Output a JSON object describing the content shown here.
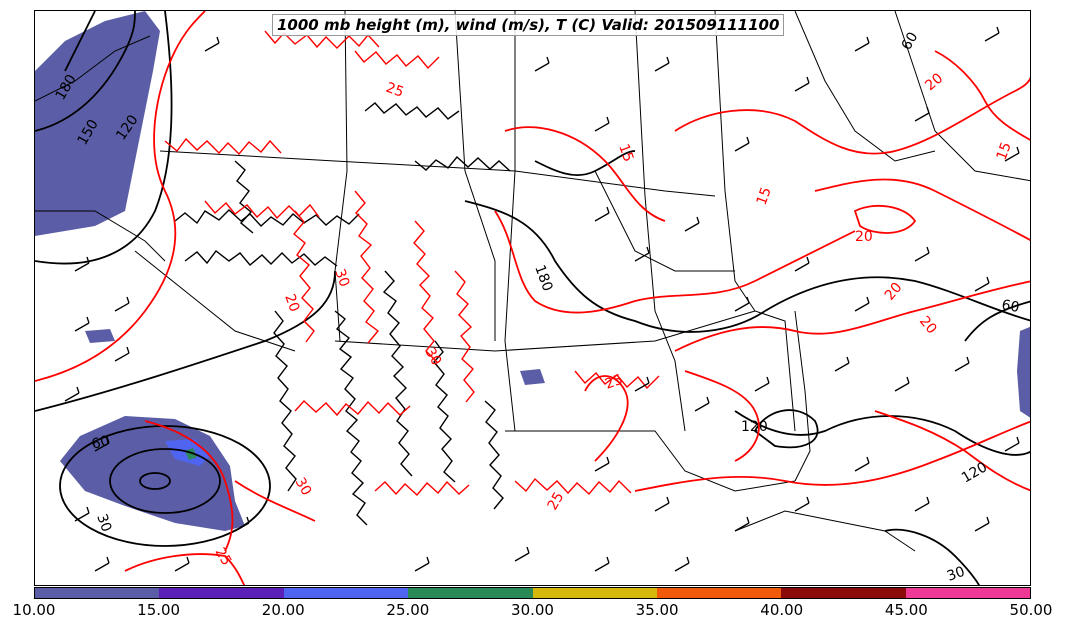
{
  "title": "1000 mb height (m), wind (m/s), T (C) Valid: 201509111100",
  "colorbar": {
    "labels": [
      "10.00",
      "15.00",
      "20.00",
      "25.00",
      "30.00",
      "35.00",
      "40.00",
      "45.00",
      "50.00"
    ],
    "colors": [
      "#5b5ea6",
      "#5b20b8",
      "#4f64f0",
      "#2a8a57",
      "#d6b80c",
      "#f05a0a",
      "#8b0a0a",
      "#ee3a96"
    ]
  },
  "height_contour_labels": [
    "180",
    "150",
    "120",
    "60",
    "30",
    "180",
    "120",
    "120",
    "60",
    "60",
    "30"
  ],
  "temperature_contour_labels": [
    "20",
    "25",
    "30",
    "25",
    "25",
    "15",
    "15",
    "15",
    "20",
    "20",
    "20",
    "20",
    "25",
    "30",
    "30"
  ],
  "colors": {
    "height_contours": "#000000",
    "temperature_contours": "#ff0000",
    "wind_shading": "#5b5ea6",
    "wind_barbs": "#000000"
  }
}
